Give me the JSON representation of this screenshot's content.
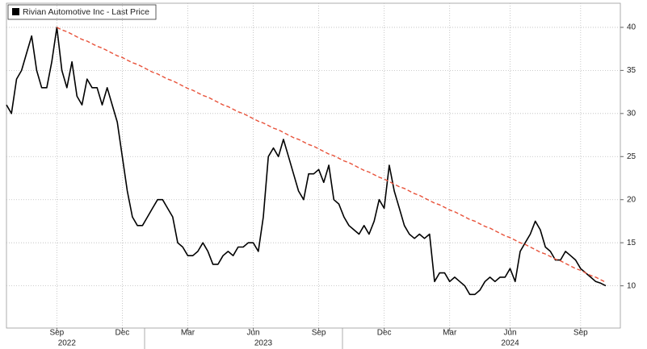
{
  "chart_data": {
    "type": "line",
    "legend_label": "Rivian Automotive Inc - Last Price",
    "categories": [
      null,
      null,
      null,
      null,
      null,
      null,
      null,
      null,
      null,
      null,
      "Sep",
      null,
      null,
      null,
      null,
      null,
      null,
      null,
      null,
      null,
      null,
      null,
      null,
      "Dec",
      null,
      null,
      null,
      null,
      null,
      null,
      null,
      null,
      null,
      null,
      null,
      null,
      "Mar",
      null,
      null,
      null,
      null,
      null,
      null,
      null,
      null,
      null,
      null,
      null,
      null,
      "Jun",
      null,
      null,
      null,
      null,
      null,
      null,
      null,
      null,
      null,
      null,
      null,
      null,
      "Sep",
      null,
      null,
      null,
      null,
      null,
      null,
      null,
      null,
      null,
      null,
      null,
      null,
      "Dec",
      null,
      null,
      null,
      null,
      null,
      null,
      null,
      null,
      null,
      null,
      null,
      null,
      "Mar",
      null,
      null,
      null,
      null,
      null,
      null,
      null,
      null,
      null,
      null,
      null,
      "Jun",
      null,
      null,
      null,
      null,
      null,
      null,
      null,
      null,
      null,
      null,
      null,
      null,
      null,
      "Sep",
      null,
      null,
      null,
      null,
      null
    ],
    "year_labels": [
      null,
      null,
      null,
      null,
      null,
      null,
      null,
      null,
      null,
      null,
      null,
      null,
      "2022",
      null,
      null,
      null,
      null,
      null,
      null,
      null,
      null,
      null,
      null,
      null,
      null,
      null,
      null,
      null,
      null,
      null,
      null,
      null,
      null,
      null,
      null,
      null,
      null,
      null,
      null,
      null,
      null,
      null,
      null,
      null,
      null,
      null,
      null,
      null,
      null,
      null,
      null,
      "2023",
      null,
      null,
      null,
      null,
      null,
      null,
      null,
      null,
      null,
      null,
      null,
      null,
      null,
      null,
      null,
      null,
      null,
      null,
      null,
      null,
      null,
      null,
      null,
      null,
      null,
      null,
      null,
      null,
      null,
      null,
      null,
      null,
      null,
      null,
      null,
      null,
      null,
      null,
      null,
      null,
      null,
      null,
      null,
      null,
      null,
      null,
      null,
      null,
      "2024",
      null,
      null,
      null,
      null,
      null,
      null,
      null,
      null,
      null,
      null,
      null,
      null,
      null,
      null,
      null,
      null,
      null,
      null,
      null
    ],
    "series": [
      {
        "name": "Rivian Automotive Inc - Last Price",
        "color": "#000000",
        "values": [
          31,
          30,
          34,
          35,
          37,
          39,
          35,
          33,
          33,
          36,
          40,
          35,
          33,
          36,
          32,
          31,
          34,
          33,
          33,
          31,
          33,
          31,
          29,
          25,
          21,
          18,
          17,
          17,
          18,
          19,
          20,
          20,
          19,
          18,
          15,
          14.5,
          13.5,
          13.5,
          14,
          15,
          14,
          12.5,
          12.5,
          13.5,
          14,
          13.5,
          14.5,
          14.5,
          15,
          15,
          14,
          18,
          25,
          26,
          25,
          27,
          25,
          23,
          21,
          20,
          23,
          23,
          23.5,
          22,
          24,
          20,
          19.5,
          18,
          17,
          16.5,
          16,
          17,
          16,
          17.5,
          20,
          19,
          24,
          21,
          19,
          17,
          16,
          15.5,
          16,
          15.5,
          16,
          10.5,
          11.5,
          11.5,
          10.5,
          11,
          10.5,
          10,
          9,
          9,
          9.5,
          10.5,
          11,
          10.5,
          11,
          11,
          12,
          10.5,
          14,
          15,
          16,
          17.5,
          16.5,
          14.5,
          14,
          13,
          13,
          14,
          13.5,
          13,
          12,
          11.5,
          11,
          10.5,
          10.3,
          10
        ]
      },
      {
        "color": "#e8523a",
        "dashed": true,
        "values": [
          null,
          null,
          null,
          null,
          null,
          null,
          null,
          null,
          null,
          null,
          40.0,
          39.7,
          39.5,
          39.2,
          38.9,
          38.6,
          38.4,
          38.1,
          37.8,
          37.6,
          37.3,
          37.0,
          36.7,
          36.5,
          36.2,
          35.9,
          35.7,
          35.4,
          35.1,
          34.8,
          34.6,
          34.3,
          34.0,
          33.8,
          33.5,
          33.2,
          32.9,
          32.7,
          32.4,
          32.1,
          31.9,
          31.6,
          31.3,
          31.0,
          30.8,
          30.5,
          30.2,
          30.0,
          29.7,
          29.4,
          29.1,
          28.9,
          28.6,
          28.3,
          28.1,
          27.8,
          27.5,
          27.2,
          27.0,
          26.7,
          26.4,
          26.2,
          25.9,
          25.6,
          25.3,
          25.1,
          24.8,
          24.5,
          24.3,
          24.0,
          23.7,
          23.4,
          23.2,
          22.9,
          22.6,
          22.4,
          22.1,
          21.8,
          21.5,
          21.3,
          21.0,
          20.7,
          20.5,
          20.2,
          19.9,
          19.6,
          19.4,
          19.1,
          18.8,
          18.6,
          18.3,
          18.0,
          17.7,
          17.5,
          17.2,
          16.9,
          16.7,
          16.4,
          16.1,
          15.8,
          15.6,
          15.3,
          15.0,
          14.8,
          14.5,
          14.2,
          13.9,
          13.7,
          13.4,
          13.1,
          12.9,
          12.6,
          12.3,
          12.0,
          11.8,
          11.5,
          11.2,
          11.0,
          10.7,
          10.4
        ]
      }
    ],
    "ylim": [
      5.1,
      42.8
    ],
    "yticks": [
      10,
      15,
      20,
      25,
      30,
      35,
      40
    ],
    "grid": true
  }
}
